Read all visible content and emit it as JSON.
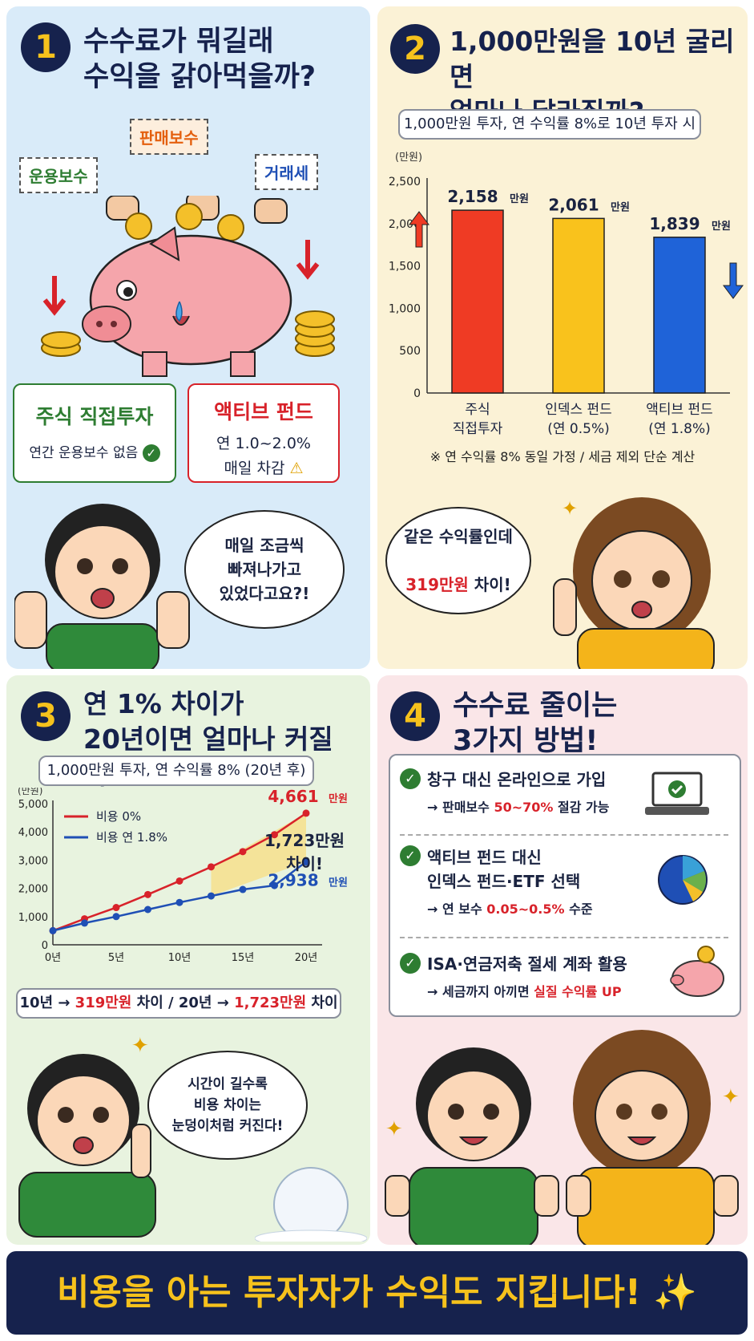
{
  "p1": {
    "number": "1",
    "title": "수수료가 뭐길래\n수익을 갉아먹을까?",
    "tags": [
      "판매보수",
      "운용보수",
      "거래세"
    ],
    "box_left_title": "주식 직접투자",
    "box_left_sub": "연간 운용보수 없음",
    "box_right_title": "액티브 펀드",
    "box_right_sub1": "연 1.0~2.0%",
    "box_right_sub2": "매일 차감",
    "bubble": "매일 조금씩\n빠져나가고\n있었다고요?!"
  },
  "p2": {
    "number": "2",
    "title": "1,000만원을 10년 굴리면\n얼마나 달라질까?",
    "pill": "1,000만원 투자, 연 수익률 8%로 10년 투자 시",
    "note": "※ 연 수익률 8% 동일 가정 / 세금 제외 단순 계산",
    "bubble_line1": "같은 수익률인데",
    "bubble_hl": "319만원",
    "bubble_tail": " 차이!"
  },
  "p3": {
    "number": "3",
    "title": "연 1% 차이가\n20년이면 얼마나 커질까?",
    "pill": "1,000만원 투자, 연 수익률 8% (20년 후)",
    "diff_value": "1,723만원",
    "diff_label": "차이!",
    "bottom_a": "10년 → ",
    "bottom_b": "319만원",
    "bottom_c": " 차이 / 20년 → ",
    "bottom_d": "1,723만원",
    "bottom_e": " 차이",
    "bubble": "시간이 길수록\n비용 차이는\n눈덩이처럼 커진다!"
  },
  "p4": {
    "number": "4",
    "title": "수수료 줄이는\n3가지 방법!",
    "items": [
      {
        "title": "창구 대신 온라인으로 가입",
        "pre": "→ 판매보수 ",
        "hl": "50~70%",
        "post": " 절감 가능"
      },
      {
        "title": "액티브 펀드 대신\n인덱스 펀드·ETF 선택",
        "pre": "→ 연 보수 ",
        "hl": "0.05~0.5%",
        "post": " 수준"
      },
      {
        "title": "ISA·연금저축 절세 계좌 활용",
        "pre": "→ 세금까지 아끼면 ",
        "hl": "실질 수익률 UP",
        "post": ""
      }
    ]
  },
  "footer": "비용을 아는 투자자가 수익도 지킵니다! ✨",
  "colors": {
    "navy": "#16224d",
    "gold": "#f6c21c",
    "red": "#d8222a",
    "blue": "#1f4fb5",
    "green": "#2e7d32"
  },
  "chart_data": [
    {
      "type": "bar",
      "ylabel": "(만원)",
      "ylim": [
        0,
        2500
      ],
      "yticks": [
        "0",
        "500",
        "1,000",
        "1,500",
        "2,000",
        "2,500"
      ],
      "categories": [
        "주식\n직접투자",
        "인덱스 펀드\n(연 0.5%)",
        "액티브 펀드\n(연 1.8%)"
      ],
      "values": [
        2158,
        2061,
        1839
      ],
      "value_labels": [
        "2,158",
        "2,061",
        "1,839"
      ],
      "unit": "만원",
      "bar_colors": [
        "#ef3b24",
        "#f9c21c",
        "#1f63d8"
      ]
    },
    {
      "type": "line",
      "ylabel": "(만원)",
      "ylim": [
        0,
        5000
      ],
      "yticks": [
        "0",
        "1,000",
        "2,000",
        "3,000",
        "4,000",
        "5,000"
      ],
      "xticks": [
        "0년",
        "5년",
        "10년",
        "15년",
        "20년"
      ],
      "xlim": [
        0,
        20
      ],
      "series": [
        {
          "name": "비용 0%",
          "color": "#d8222a",
          "x": [
            0,
            2.5,
            5,
            7.5,
            10,
            12.5,
            15,
            17.5,
            20
          ],
          "y": [
            500,
            920,
            1320,
            1780,
            2260,
            2760,
            3300,
            3900,
            4661
          ]
        },
        {
          "name": "비용 연 1.8%",
          "color": "#1f4fb5",
          "x": [
            0,
            2.5,
            5,
            7.5,
            10,
            12.5,
            15,
            17.5,
            20
          ],
          "y": [
            500,
            770,
            1000,
            1250,
            1500,
            1730,
            1960,
            2100,
            2938
          ]
        }
      ],
      "end_labels": [
        "4,661",
        "2,938"
      ],
      "unit": "만원"
    }
  ]
}
